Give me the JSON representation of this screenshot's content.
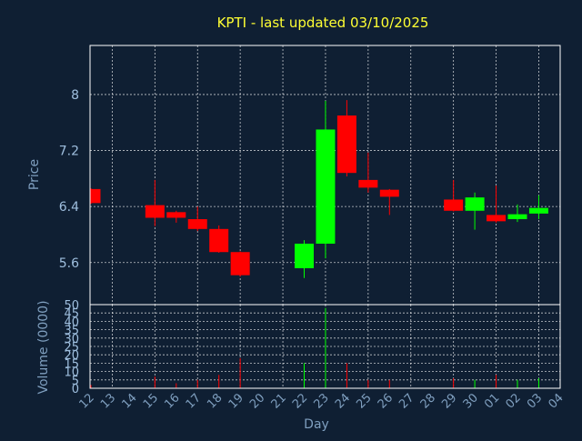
{
  "chart_data": {
    "type": "candlestick",
    "title": "KPTI - last updated 03/10/2025",
    "xlabel": "Day",
    "ylabel_price": "Price",
    "ylabel_volume": "Volume (0000)",
    "categories": [
      "12",
      "13",
      "14",
      "15",
      "16",
      "17",
      "18",
      "19",
      "20",
      "21",
      "22",
      "23",
      "24",
      "25",
      "26",
      "27",
      "28",
      "29",
      "30",
      "01",
      "02",
      "03",
      "04"
    ],
    "price_ylim": [
      5.0,
      8.7
    ],
    "price_ticks": [
      "5.6",
      "6.4",
      "7.2",
      "8"
    ],
    "volume_ylim": [
      0,
      50
    ],
    "volume_ticks": [
      "0",
      "5",
      "10",
      "15",
      "20",
      "25",
      "30",
      "35",
      "40",
      "45",
      "50"
    ],
    "candles": [
      {
        "day": "12",
        "open": 6.65,
        "close": 6.45,
        "high": 6.66,
        "low": 6.44,
        "volume": 2
      },
      {
        "day": "15",
        "open": 6.42,
        "close": 6.24,
        "high": 6.78,
        "low": 6.12,
        "volume": 7
      },
      {
        "day": "16",
        "open": 6.32,
        "close": 6.24,
        "high": 6.34,
        "low": 6.17,
        "volume": 3
      },
      {
        "day": "17",
        "open": 6.22,
        "close": 6.08,
        "high": 6.4,
        "low": 6.05,
        "volume": 5
      },
      {
        "day": "18",
        "open": 6.08,
        "close": 5.75,
        "high": 6.13,
        "low": 5.74,
        "volume": 8
      },
      {
        "day": "19",
        "open": 5.75,
        "close": 5.42,
        "high": 5.76,
        "low": 5.4,
        "volume": 18
      },
      {
        "day": "22",
        "open": 5.52,
        "close": 5.87,
        "high": 5.92,
        "low": 5.38,
        "volume": 15
      },
      {
        "day": "23",
        "open": 5.87,
        "close": 7.5,
        "high": 7.91,
        "low": 5.66,
        "volume": 48
      },
      {
        "day": "24",
        "open": 7.7,
        "close": 6.88,
        "high": 7.92,
        "low": 6.83,
        "volume": 15
      },
      {
        "day": "25",
        "open": 6.78,
        "close": 6.67,
        "high": 7.17,
        "low": 6.6,
        "volume": 5
      },
      {
        "day": "26",
        "open": 6.64,
        "close": 6.54,
        "high": 6.65,
        "low": 6.28,
        "volume": 5
      },
      {
        "day": "29",
        "open": 6.5,
        "close": 6.34,
        "high": 6.78,
        "low": 6.33,
        "volume": 6
      },
      {
        "day": "30",
        "open": 6.34,
        "close": 6.53,
        "high": 6.6,
        "low": 6.07,
        "volume": 5
      },
      {
        "day": "01",
        "open": 6.28,
        "close": 6.19,
        "high": 6.7,
        "low": 6.17,
        "volume": 8
      },
      {
        "day": "02",
        "open": 6.22,
        "close": 6.29,
        "high": 6.43,
        "low": 6.18,
        "volume": 5
      },
      {
        "day": "03",
        "open": 6.3,
        "close": 6.38,
        "high": 6.56,
        "low": 6.22,
        "volume": 6
      }
    ],
    "colors": {
      "background": "#0f1f33",
      "up": "#00ff00",
      "down": "#ff0000",
      "title": "#ffff33",
      "axis_label": "#7f9fbf",
      "tick": "#9fbfdf",
      "grid": "#ffffff"
    },
    "grid": true
  }
}
